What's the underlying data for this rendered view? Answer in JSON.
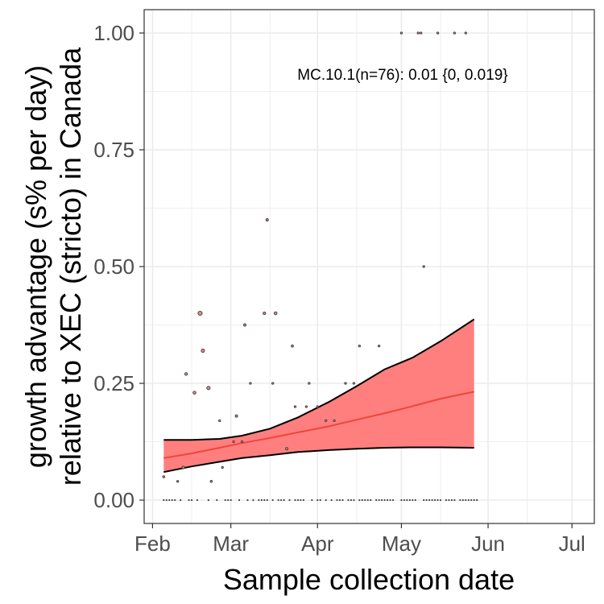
{
  "chart_data": {
    "type": "scatter",
    "xlabel": "Sample collection date",
    "ylabel_line1": "growth advantage (s% per day)",
    "ylabel_line2": "relative to XEC (stricto) in Canada",
    "annotation": "MC.10.1(n=76): 0.01 {0, 0.019}",
    "x_range": [
      "2025-01-29",
      "2025-07-09"
    ],
    "ylim": [
      -0.05,
      1.05
    ],
    "grid": true,
    "x_ticks": [
      {
        "date": "2025-02-01",
        "label": "Feb"
      },
      {
        "date": "2025-03-01",
        "label": "Mar"
      },
      {
        "date": "2025-04-01",
        "label": "Apr"
      },
      {
        "date": "2025-05-01",
        "label": "May"
      },
      {
        "date": "2025-06-01",
        "label": "Jun"
      },
      {
        "date": "2025-07-01",
        "label": "Jul"
      }
    ],
    "x_minor_ticks": [
      "2025-02-15",
      "2025-03-15",
      "2025-04-15",
      "2025-05-15",
      "2025-06-15"
    ],
    "y_ticks": [
      {
        "value": 0,
        "label": "0.00"
      },
      {
        "value": 0.25,
        "label": "0.25"
      },
      {
        "value": 0.5,
        "label": "0.50"
      },
      {
        "value": 0.75,
        "label": "0.75"
      },
      {
        "value": 1.0,
        "label": "1.00"
      }
    ],
    "y_minor_ticks": [
      0.125,
      0.375,
      0.625,
      0.875
    ],
    "colors": {
      "ribbon_fill": "#ff7f7f",
      "fit_line": "#f0443c",
      "point_fill": "#e08b8b",
      "point_stroke": "#3a3a3a",
      "grid": "#ebebeb",
      "panel_border": "#333333"
    },
    "points": [
      {
        "date": "2025-02-05",
        "y": 0.05,
        "size": 1.3
      },
      {
        "date": "2025-02-10",
        "y": 0.04,
        "size": 1.2
      },
      {
        "date": "2025-02-12",
        "y": 0.07,
        "size": 1.6
      },
      {
        "date": "2025-02-13",
        "y": 0.27,
        "size": 1.7
      },
      {
        "date": "2025-02-16",
        "y": 0.23,
        "size": 1.8
      },
      {
        "date": "2025-02-18",
        "y": 0.4,
        "size": 2.6
      },
      {
        "date": "2025-02-19",
        "y": 0.32,
        "size": 2.1
      },
      {
        "date": "2025-02-21",
        "y": 0.24,
        "size": 2.1
      },
      {
        "date": "2025-02-22",
        "y": 0.04,
        "size": 1.3
      },
      {
        "date": "2025-02-25",
        "y": 0.17,
        "size": 1.2
      },
      {
        "date": "2025-02-26",
        "y": 0.07,
        "size": 1.2
      },
      {
        "date": "2025-03-02",
        "y": 0.125,
        "size": 1.2
      },
      {
        "date": "2025-03-03",
        "y": 0.18,
        "size": 1.5
      },
      {
        "date": "2025-03-05",
        "y": 0.125,
        "size": 1.2
      },
      {
        "date": "2025-03-06",
        "y": 0.375,
        "size": 1.5
      },
      {
        "date": "2025-03-08",
        "y": 0.25,
        "size": 1.2
      },
      {
        "date": "2025-03-13",
        "y": 0.4,
        "size": 1.6
      },
      {
        "date": "2025-03-14",
        "y": 0.6,
        "size": 1.5
      },
      {
        "date": "2025-03-16",
        "y": 0.25,
        "size": 1.2
      },
      {
        "date": "2025-03-17",
        "y": 0.4,
        "size": 1.8
      },
      {
        "date": "2025-03-21",
        "y": 0.11,
        "size": 1.5
      },
      {
        "date": "2025-03-23",
        "y": 0.33,
        "size": 1.4
      },
      {
        "date": "2025-03-24",
        "y": 0.2,
        "size": 1.2
      },
      {
        "date": "2025-03-28",
        "y": 0.2,
        "size": 1.2
      },
      {
        "date": "2025-03-29",
        "y": 0.25,
        "size": 1.2
      },
      {
        "date": "2025-04-01",
        "y": 0.2,
        "size": 1.2
      },
      {
        "date": "2025-04-04",
        "y": 0.17,
        "size": 1.2
      },
      {
        "date": "2025-04-07",
        "y": 0.17,
        "size": 1.2
      },
      {
        "date": "2025-04-11",
        "y": 0.25,
        "size": 1.2
      },
      {
        "date": "2025-04-14",
        "y": 0.25,
        "size": 1.2
      },
      {
        "date": "2025-04-16",
        "y": 0.33,
        "size": 1.2
      },
      {
        "date": "2025-04-23",
        "y": 0.33,
        "size": 1.2
      },
      {
        "date": "2025-05-01",
        "y": 1.0,
        "size": 1.2
      },
      {
        "date": "2025-05-07",
        "y": 1.0,
        "size": 1.2
      },
      {
        "date": "2025-05-08",
        "y": 1.0,
        "size": 1.2
      },
      {
        "date": "2025-05-09",
        "y": 0.5,
        "size": 1.2
      },
      {
        "date": "2025-05-14",
        "y": 1.0,
        "size": 1.2
      },
      {
        "date": "2025-05-20",
        "y": 1.0,
        "size": 1.2
      },
      {
        "date": "2025-05-24",
        "y": 1.0,
        "size": 1.2
      }
    ],
    "zero_points": [
      "2025-02-05",
      "2025-02-06",
      "2025-02-07",
      "2025-02-08",
      "2025-02-09",
      "2025-02-11",
      "2025-02-14",
      "2025-02-15",
      "2025-02-17",
      "2025-02-21",
      "2025-02-24",
      "2025-02-27",
      "2025-02-28",
      "2025-03-01",
      "2025-03-04",
      "2025-03-07",
      "2025-03-09",
      "2025-03-11",
      "2025-03-12",
      "2025-03-13",
      "2025-03-14",
      "2025-03-16",
      "2025-03-18",
      "2025-03-19",
      "2025-03-20",
      "2025-03-22",
      "2025-03-24",
      "2025-03-25",
      "2025-03-26",
      "2025-03-27",
      "2025-03-30",
      "2025-04-01",
      "2025-04-02",
      "2025-04-04",
      "2025-04-06",
      "2025-04-08",
      "2025-04-09",
      "2025-04-10",
      "2025-04-12",
      "2025-04-13",
      "2025-04-14",
      "2025-04-16",
      "2025-04-17",
      "2025-04-18",
      "2025-04-19",
      "2025-04-20",
      "2025-04-22",
      "2025-04-23",
      "2025-04-24",
      "2025-04-25",
      "2025-04-26",
      "2025-04-27",
      "2025-04-28",
      "2025-05-01",
      "2025-05-02",
      "2025-05-03",
      "2025-05-04",
      "2025-05-05",
      "2025-05-06",
      "2025-05-09",
      "2025-05-10",
      "2025-05-11",
      "2025-05-12",
      "2025-05-13",
      "2025-05-14",
      "2025-05-15",
      "2025-05-17",
      "2025-05-18",
      "2025-05-19",
      "2025-05-20",
      "2025-05-22",
      "2025-05-23",
      "2025-05-24",
      "2025-05-25",
      "2025-05-26",
      "2025-05-27",
      "2025-05-28"
    ],
    "fit": [
      {
        "date": "2025-02-05",
        "y": 0.09,
        "lower": 0.06,
        "upper": 0.129
      },
      {
        "date": "2025-02-15",
        "y": 0.1,
        "lower": 0.072,
        "upper": 0.129
      },
      {
        "date": "2025-02-25",
        "y": 0.112,
        "lower": 0.082,
        "upper": 0.131
      },
      {
        "date": "2025-03-05",
        "y": 0.122,
        "lower": 0.09,
        "upper": 0.138
      },
      {
        "date": "2025-03-15",
        "y": 0.133,
        "lower": 0.096,
        "upper": 0.153
      },
      {
        "date": "2025-03-25",
        "y": 0.145,
        "lower": 0.103,
        "upper": 0.177
      },
      {
        "date": "2025-04-05",
        "y": 0.158,
        "lower": 0.107,
        "upper": 0.21
      },
      {
        "date": "2025-04-15",
        "y": 0.172,
        "lower": 0.11,
        "upper": 0.244
      },
      {
        "date": "2025-04-25",
        "y": 0.186,
        "lower": 0.112,
        "upper": 0.28
      },
      {
        "date": "2025-05-05",
        "y": 0.201,
        "lower": 0.113,
        "upper": 0.305
      },
      {
        "date": "2025-05-15",
        "y": 0.217,
        "lower": 0.113,
        "upper": 0.34
      },
      {
        "date": "2025-05-27",
        "y": 0.232,
        "lower": 0.112,
        "upper": 0.387
      }
    ]
  }
}
